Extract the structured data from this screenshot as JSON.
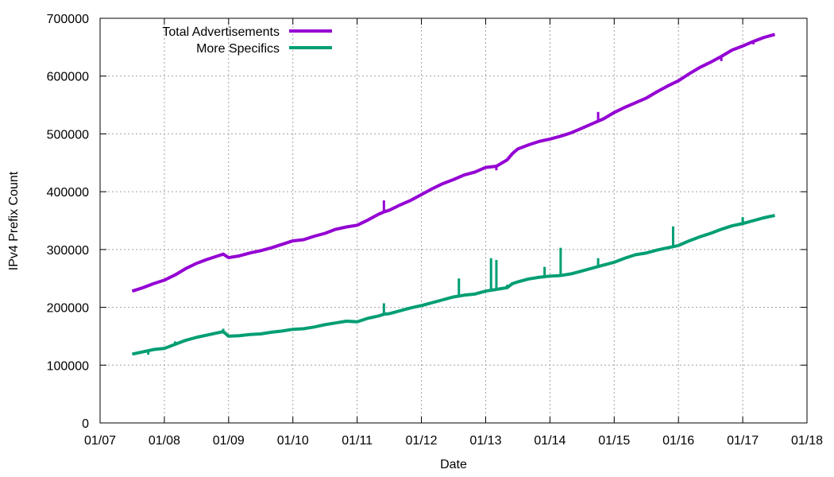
{
  "chart_data": {
    "type": "line",
    "xlabel": "Date",
    "ylabel": "IPv4 Prefix Count",
    "x_ticks": [
      "01/07",
      "01/08",
      "01/09",
      "01/10",
      "01/11",
      "01/12",
      "01/13",
      "01/14",
      "01/15",
      "01/16",
      "01/17",
      "01/18"
    ],
    "y_ticks": [
      "0",
      "100000",
      "200000",
      "300000",
      "400000",
      "500000",
      "600000",
      "700000"
    ],
    "xlim": [
      "2007-01",
      "2018-01"
    ],
    "ylim": [
      0,
      700000
    ],
    "grid": true,
    "legend": "top-left",
    "series": [
      {
        "name": "Total Advertisements",
        "color": "#9400d3",
        "points": [
          [
            "2007-07",
            228000
          ],
          [
            "2007-09",
            234000
          ],
          [
            "2007-11",
            241000
          ],
          [
            "2008-01",
            247000
          ],
          [
            "2008-03",
            256000
          ],
          [
            "2008-05",
            267000
          ],
          [
            "2008-07",
            276000
          ],
          [
            "2008-09",
            283000
          ],
          [
            "2008-11",
            289000
          ],
          [
            "2008-12",
            292000
          ],
          [
            "2009-01",
            286000
          ],
          [
            "2009-03",
            289000
          ],
          [
            "2009-05",
            294000
          ],
          [
            "2009-07",
            298000
          ],
          [
            "2009-09",
            303000
          ],
          [
            "2009-11",
            309000
          ],
          [
            "2010-01",
            315000
          ],
          [
            "2010-03",
            317000
          ],
          [
            "2010-05",
            323000
          ],
          [
            "2010-07",
            328000
          ],
          [
            "2010-09",
            335000
          ],
          [
            "2010-11",
            339000
          ],
          [
            "2011-01",
            342000
          ],
          [
            "2011-03",
            351000
          ],
          [
            "2011-05",
            361000
          ],
          [
            "2011-06",
            365000
          ],
          [
            "2011-07",
            368000
          ],
          [
            "2011-09",
            377000
          ],
          [
            "2011-11",
            385000
          ],
          [
            "2012-01",
            395000
          ],
          [
            "2012-03",
            405000
          ],
          [
            "2012-05",
            414000
          ],
          [
            "2012-07",
            421000
          ],
          [
            "2012-09",
            429000
          ],
          [
            "2012-11",
            434000
          ],
          [
            "2013-01",
            442000
          ],
          [
            "2013-03",
            444000
          ],
          [
            "2013-05",
            455000
          ],
          [
            "2013-06",
            466000
          ],
          [
            "2013-07",
            474000
          ],
          [
            "2013-09",
            481000
          ],
          [
            "2013-11",
            487000
          ],
          [
            "2014-01",
            491000
          ],
          [
            "2014-03",
            496000
          ],
          [
            "2014-05",
            502000
          ],
          [
            "2014-07",
            510000
          ],
          [
            "2014-09",
            518000
          ],
          [
            "2014-11",
            526000
          ],
          [
            "2015-01",
            537000
          ],
          [
            "2015-03",
            546000
          ],
          [
            "2015-05",
            554000
          ],
          [
            "2015-07",
            562000
          ],
          [
            "2015-09",
            573000
          ],
          [
            "2015-11",
            583000
          ],
          [
            "2016-01",
            592000
          ],
          [
            "2016-03",
            604000
          ],
          [
            "2016-05",
            615000
          ],
          [
            "2016-07",
            624000
          ],
          [
            "2016-09",
            634000
          ],
          [
            "2016-11",
            645000
          ],
          [
            "2017-01",
            652000
          ],
          [
            "2017-03",
            660000
          ],
          [
            "2017-05",
            667000
          ],
          [
            "2017-07",
            672000
          ]
        ],
        "spikes": [
          [
            "2007-10",
            236000
          ],
          [
            "2008-02",
            254000
          ],
          [
            "2008-12",
            294000
          ],
          [
            "2011-06",
            385000
          ],
          [
            "2013-03",
            437000
          ],
          [
            "2014-10",
            538000
          ],
          [
            "2016-09",
            626000
          ],
          [
            "2017-03",
            655000
          ]
        ]
      },
      {
        "name": "More Specifics",
        "color": "#009e73",
        "points": [
          [
            "2007-07",
            119000
          ],
          [
            "2007-09",
            123000
          ],
          [
            "2007-11",
            127000
          ],
          [
            "2008-01",
            129000
          ],
          [
            "2008-03",
            136000
          ],
          [
            "2008-05",
            143000
          ],
          [
            "2008-07",
            148000
          ],
          [
            "2008-09",
            152000
          ],
          [
            "2008-11",
            156000
          ],
          [
            "2008-12",
            158000
          ],
          [
            "2009-01",
            150000
          ],
          [
            "2009-03",
            151000
          ],
          [
            "2009-05",
            153000
          ],
          [
            "2009-07",
            154000
          ],
          [
            "2009-09",
            157000
          ],
          [
            "2009-11",
            159000
          ],
          [
            "2010-01",
            162000
          ],
          [
            "2010-03",
            163000
          ],
          [
            "2010-05",
            166000
          ],
          [
            "2010-07",
            170000
          ],
          [
            "2010-09",
            173000
          ],
          [
            "2010-11",
            176000
          ],
          [
            "2011-01",
            175000
          ],
          [
            "2011-03",
            181000
          ],
          [
            "2011-05",
            185000
          ],
          [
            "2011-06",
            188000
          ],
          [
            "2011-07",
            189000
          ],
          [
            "2011-09",
            194000
          ],
          [
            "2011-11",
            199000
          ],
          [
            "2012-01",
            203000
          ],
          [
            "2012-03",
            208000
          ],
          [
            "2012-05",
            213000
          ],
          [
            "2012-07",
            218000
          ],
          [
            "2012-09",
            221000
          ],
          [
            "2012-11",
            223000
          ],
          [
            "2013-01",
            228000
          ],
          [
            "2013-03",
            231000
          ],
          [
            "2013-05",
            234000
          ],
          [
            "2013-06",
            241000
          ],
          [
            "2013-07",
            244000
          ],
          [
            "2013-09",
            249000
          ],
          [
            "2013-11",
            252000
          ],
          [
            "2014-01",
            254000
          ],
          [
            "2014-03",
            255000
          ],
          [
            "2014-05",
            258000
          ],
          [
            "2014-07",
            263000
          ],
          [
            "2014-09",
            268000
          ],
          [
            "2014-11",
            273000
          ],
          [
            "2015-01",
            278000
          ],
          [
            "2015-03",
            285000
          ],
          [
            "2015-05",
            291000
          ],
          [
            "2015-07",
            294000
          ],
          [
            "2015-09",
            299000
          ],
          [
            "2015-11",
            303000
          ],
          [
            "2016-01",
            307000
          ],
          [
            "2016-03",
            315000
          ],
          [
            "2016-05",
            322000
          ],
          [
            "2016-07",
            328000
          ],
          [
            "2016-09",
            335000
          ],
          [
            "2016-11",
            341000
          ],
          [
            "2017-01",
            345000
          ],
          [
            "2017-03",
            350000
          ],
          [
            "2017-05",
            355000
          ],
          [
            "2017-07",
            359000
          ]
        ],
        "spikes": [
          [
            "2007-10",
            118000
          ],
          [
            "2008-03",
            141000
          ],
          [
            "2008-12",
            163000
          ],
          [
            "2011-06",
            207000
          ],
          [
            "2012-08",
            250000
          ],
          [
            "2013-02",
            285000
          ],
          [
            "2013-03",
            282000
          ],
          [
            "2013-05",
            239000
          ],
          [
            "2013-12",
            270000
          ],
          [
            "2014-03",
            303000
          ],
          [
            "2014-10",
            285000
          ],
          [
            "2015-12",
            340000
          ],
          [
            "2017-01",
            356000
          ],
          [
            "2017-04",
            350000
          ]
        ]
      }
    ]
  }
}
